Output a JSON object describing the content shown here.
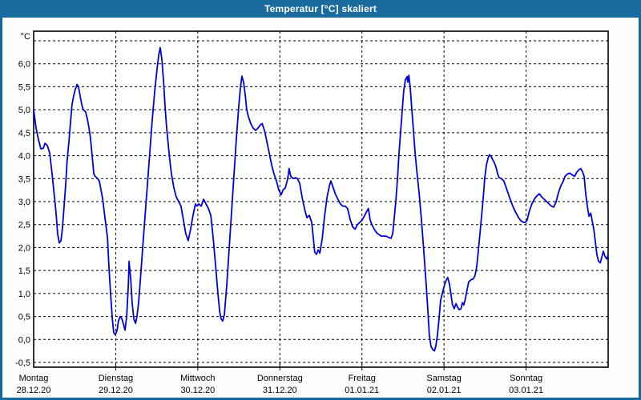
{
  "window": {
    "title": "Temperatur [°C] skaliert"
  },
  "colors": {
    "frame_blue": "#176a9d",
    "titlebar_blue": "#1b6b9f",
    "title_text": "#ffffff",
    "content_bg": "#fdfffd",
    "plot_bg": "#ffffff",
    "grid": "#000000",
    "axis_text": "#000000",
    "line_blue": "#0000d8"
  },
  "chart_data": {
    "type": "line",
    "title": "Temperatur [°C] skaliert",
    "y_unit": "°C",
    "ylim": [
      -0.5,
      6.5
    ],
    "ygrid_min": -0.5,
    "ygrid_max": 6.5,
    "ygrid_step": 0.5,
    "grid_style": "dashed",
    "legend": "none",
    "total_hours": 168,
    "hours_per_day": 24,
    "yticks": [
      {
        "v": 6.0,
        "label": "6,0"
      },
      {
        "v": 5.5,
        "label": "5,5"
      },
      {
        "v": 5.0,
        "label": "5,0"
      },
      {
        "v": 4.5,
        "label": "4,5"
      },
      {
        "v": 4.0,
        "label": "4,0"
      },
      {
        "v": 3.5,
        "label": "3,5"
      },
      {
        "v": 3.0,
        "label": "3,0"
      },
      {
        "v": 2.5,
        "label": "2,5"
      },
      {
        "v": 2.0,
        "label": "2,0"
      },
      {
        "v": 1.5,
        "label": "1,5"
      },
      {
        "v": 1.0,
        "label": "1,0"
      },
      {
        "v": 0.5,
        "label": "0,5"
      },
      {
        "v": 0.0,
        "label": "0,0"
      },
      {
        "v": -0.5,
        "label": "-0,5"
      }
    ],
    "x_days": [
      {
        "name": "Montag",
        "date": "28.12.20"
      },
      {
        "name": "Dienstag",
        "date": "29.12.20"
      },
      {
        "name": "Mittwoch",
        "date": "30.12.20"
      },
      {
        "name": "Donnerstag",
        "date": "31.12.20"
      },
      {
        "name": "Freitag",
        "date": "01.01.21"
      },
      {
        "name": "Samstag",
        "date": "02.01.21"
      },
      {
        "name": "Sonntag",
        "date": "03.01.21"
      }
    ],
    "series": [
      {
        "name": "Temperatur",
        "color": "#0000d8",
        "points": [
          [
            0,
            5.0
          ],
          [
            0.7,
            4.6
          ],
          [
            1.4,
            4.35
          ],
          [
            2.1,
            4.15
          ],
          [
            2.8,
            4.16
          ],
          [
            3.3,
            4.27
          ],
          [
            4.0,
            4.22
          ],
          [
            4.7,
            4.05
          ],
          [
            5.4,
            3.6
          ],
          [
            6.1,
            3.1
          ],
          [
            6.6,
            2.7
          ],
          [
            7.0,
            2.3
          ],
          [
            7.5,
            2.1
          ],
          [
            8.0,
            2.15
          ],
          [
            8.4,
            2.4
          ],
          [
            8.9,
            2.9
          ],
          [
            9.4,
            3.4
          ],
          [
            9.8,
            3.9
          ],
          [
            10.3,
            4.3
          ],
          [
            10.8,
            4.75
          ],
          [
            11.2,
            5.1
          ],
          [
            11.7,
            5.3
          ],
          [
            12.2,
            5.45
          ],
          [
            12.7,
            5.55
          ],
          [
            13.1,
            5.5
          ],
          [
            13.6,
            5.3
          ],
          [
            14.1,
            5.1
          ],
          [
            14.5,
            5.0
          ],
          [
            15.2,
            4.95
          ],
          [
            15.7,
            4.8
          ],
          [
            16.2,
            4.6
          ],
          [
            16.6,
            4.4
          ],
          [
            17.1,
            4.0
          ],
          [
            17.6,
            3.6
          ],
          [
            18.0,
            3.55
          ],
          [
            18.7,
            3.5
          ],
          [
            19.2,
            3.45
          ],
          [
            19.7,
            3.25
          ],
          [
            20.2,
            3.05
          ],
          [
            20.6,
            2.8
          ],
          [
            21.1,
            2.5
          ],
          [
            21.6,
            2.2
          ],
          [
            22.0,
            1.6
          ],
          [
            22.5,
            1.0
          ],
          [
            23.0,
            0.45
          ],
          [
            23.4,
            0.15
          ],
          [
            23.9,
            0.1
          ],
          [
            24.4,
            0.2
          ],
          [
            24.8,
            0.4
          ],
          [
            25.3,
            0.5
          ],
          [
            25.8,
            0.45
          ],
          [
            26.2,
            0.35
          ],
          [
            26.7,
            0.2
          ],
          [
            27.2,
            0.5
          ],
          [
            27.7,
            1.2
          ],
          [
            27.9,
            1.7
          ],
          [
            28.4,
            1.3
          ],
          [
            28.8,
            0.8
          ],
          [
            29.3,
            0.45
          ],
          [
            29.8,
            0.35
          ],
          [
            30.2,
            0.5
          ],
          [
            30.7,
            0.8
          ],
          [
            31.2,
            1.3
          ],
          [
            31.9,
            2.0
          ],
          [
            32.6,
            2.7
          ],
          [
            33.3,
            3.4
          ],
          [
            34.0,
            4.1
          ],
          [
            34.7,
            4.8
          ],
          [
            35.4,
            5.4
          ],
          [
            36.1,
            5.9
          ],
          [
            36.6,
            6.2
          ],
          [
            37.0,
            6.35
          ],
          [
            37.5,
            6.1
          ],
          [
            38.0,
            5.6
          ],
          [
            38.4,
            5.1
          ],
          [
            38.9,
            4.6
          ],
          [
            39.4,
            4.2
          ],
          [
            39.8,
            3.9
          ],
          [
            40.3,
            3.6
          ],
          [
            41.0,
            3.3
          ],
          [
            41.7,
            3.1
          ],
          [
            42.4,
            3.0
          ],
          [
            43.1,
            2.9
          ],
          [
            43.8,
            2.6
          ],
          [
            44.5,
            2.3
          ],
          [
            45.2,
            2.15
          ],
          [
            45.9,
            2.4
          ],
          [
            46.6,
            2.7
          ],
          [
            47.3,
            2.95
          ],
          [
            47.8,
            2.9
          ],
          [
            48.3,
            2.95
          ],
          [
            49.0,
            2.9
          ],
          [
            49.7,
            3.05
          ],
          [
            50.4,
            2.95
          ],
          [
            51.1,
            2.85
          ],
          [
            51.8,
            2.7
          ],
          [
            52.5,
            2.2
          ],
          [
            53.2,
            1.6
          ],
          [
            53.9,
            1.0
          ],
          [
            54.4,
            0.6
          ],
          [
            54.8,
            0.45
          ],
          [
            55.3,
            0.4
          ],
          [
            55.8,
            0.55
          ],
          [
            56.5,
            1.2
          ],
          [
            57.2,
            2.0
          ],
          [
            57.9,
            2.8
          ],
          [
            58.6,
            3.6
          ],
          [
            59.3,
            4.4
          ],
          [
            60.0,
            5.1
          ],
          [
            60.5,
            5.5
          ],
          [
            60.9,
            5.73
          ],
          [
            61.4,
            5.6
          ],
          [
            61.9,
            5.3
          ],
          [
            62.3,
            5.0
          ],
          [
            62.8,
            4.85
          ],
          [
            63.5,
            4.7
          ],
          [
            64.2,
            4.6
          ],
          [
            64.9,
            4.55
          ],
          [
            65.6,
            4.6
          ],
          [
            66.3,
            4.67
          ],
          [
            66.8,
            4.7
          ],
          [
            67.5,
            4.55
          ],
          [
            68.2,
            4.3
          ],
          [
            68.9,
            4.05
          ],
          [
            69.6,
            3.8
          ],
          [
            70.3,
            3.6
          ],
          [
            71.0,
            3.45
          ],
          [
            71.7,
            3.25
          ],
          [
            72.4,
            3.15
          ],
          [
            72.9,
            3.25
          ],
          [
            73.6,
            3.3
          ],
          [
            74.3,
            3.5
          ],
          [
            74.7,
            3.72
          ],
          [
            75.2,
            3.55
          ],
          [
            75.9,
            3.5
          ],
          [
            76.6,
            3.52
          ],
          [
            77.1,
            3.5
          ],
          [
            77.8,
            3.4
          ],
          [
            78.5,
            3.1
          ],
          [
            79.2,
            2.85
          ],
          [
            79.9,
            2.65
          ],
          [
            80.6,
            2.7
          ],
          [
            81.3,
            2.55
          ],
          [
            81.8,
            2.2
          ],
          [
            82.2,
            1.9
          ],
          [
            82.7,
            1.85
          ],
          [
            83.2,
            1.95
          ],
          [
            83.7,
            1.88
          ],
          [
            84.4,
            2.2
          ],
          [
            85.1,
            2.7
          ],
          [
            85.8,
            3.1
          ],
          [
            86.5,
            3.35
          ],
          [
            86.9,
            3.45
          ],
          [
            87.6,
            3.3
          ],
          [
            88.3,
            3.15
          ],
          [
            89.0,
            3.05
          ],
          [
            89.7,
            2.95
          ],
          [
            90.4,
            2.9
          ],
          [
            91.1,
            2.9
          ],
          [
            91.8,
            2.85
          ],
          [
            92.6,
            2.6
          ],
          [
            93.3,
            2.45
          ],
          [
            94.0,
            2.4
          ],
          [
            94.7,
            2.5
          ],
          [
            95.4,
            2.55
          ],
          [
            96.1,
            2.6
          ],
          [
            96.8,
            2.7
          ],
          [
            97.5,
            2.8
          ],
          [
            97.9,
            2.85
          ],
          [
            98.4,
            2.6
          ],
          [
            98.9,
            2.5
          ],
          [
            99.6,
            2.4
          ],
          [
            100.3,
            2.32
          ],
          [
            101.0,
            2.28
          ],
          [
            101.7,
            2.25
          ],
          [
            102.4,
            2.25
          ],
          [
            103.1,
            2.25
          ],
          [
            103.8,
            2.22
          ],
          [
            104.5,
            2.2
          ],
          [
            105.0,
            2.3
          ],
          [
            105.4,
            2.6
          ],
          [
            105.9,
            3.0
          ],
          [
            106.4,
            3.5
          ],
          [
            106.8,
            4.0
          ],
          [
            107.3,
            4.5
          ],
          [
            107.8,
            5.0
          ],
          [
            108.2,
            5.4
          ],
          [
            108.7,
            5.65
          ],
          [
            109.2,
            5.72
          ],
          [
            109.4,
            5.6
          ],
          [
            109.7,
            5.75
          ],
          [
            110.1,
            5.5
          ],
          [
            110.6,
            5.0
          ],
          [
            111.1,
            4.5
          ],
          [
            111.5,
            4.1
          ],
          [
            112.0,
            3.7
          ],
          [
            112.7,
            3.2
          ],
          [
            113.4,
            2.6
          ],
          [
            114.1,
            1.9
          ],
          [
            114.8,
            1.2
          ],
          [
            115.3,
            0.6
          ],
          [
            115.7,
            0.1
          ],
          [
            116.2,
            -0.15
          ],
          [
            116.7,
            -0.22
          ],
          [
            117.2,
            -0.25
          ],
          [
            117.6,
            -0.15
          ],
          [
            118.1,
            0.1
          ],
          [
            118.6,
            0.5
          ],
          [
            119.0,
            0.85
          ],
          [
            119.5,
            1.0
          ],
          [
            120.2,
            1.2
          ],
          [
            120.7,
            1.3
          ],
          [
            121.1,
            1.35
          ],
          [
            121.6,
            1.2
          ],
          [
            122.1,
            0.95
          ],
          [
            122.5,
            0.75
          ],
          [
            123.0,
            0.67
          ],
          [
            123.5,
            0.78
          ],
          [
            124.0,
            0.7
          ],
          [
            124.4,
            0.65
          ],
          [
            124.9,
            0.66
          ],
          [
            125.4,
            0.8
          ],
          [
            125.8,
            0.75
          ],
          [
            126.3,
            0.9
          ],
          [
            126.8,
            1.1
          ],
          [
            127.2,
            1.25
          ],
          [
            127.9,
            1.3
          ],
          [
            128.6,
            1.32
          ],
          [
            129.1,
            1.4
          ],
          [
            129.6,
            1.6
          ],
          [
            130.0,
            1.9
          ],
          [
            130.5,
            2.3
          ],
          [
            131.0,
            2.7
          ],
          [
            131.5,
            3.1
          ],
          [
            131.9,
            3.5
          ],
          [
            132.4,
            3.8
          ],
          [
            132.9,
            3.95
          ],
          [
            133.3,
            4.02
          ],
          [
            133.8,
            3.98
          ],
          [
            134.3,
            3.9
          ],
          [
            134.7,
            3.85
          ],
          [
            135.2,
            3.75
          ],
          [
            135.7,
            3.6
          ],
          [
            136.1,
            3.52
          ],
          [
            136.8,
            3.5
          ],
          [
            137.5,
            3.45
          ],
          [
            138.2,
            3.3
          ],
          [
            138.9,
            3.15
          ],
          [
            139.6,
            3.0
          ],
          [
            140.4,
            2.85
          ],
          [
            141.1,
            2.75
          ],
          [
            141.8,
            2.65
          ],
          [
            142.5,
            2.58
          ],
          [
            143.2,
            2.55
          ],
          [
            143.9,
            2.55
          ],
          [
            144.3,
            2.6
          ],
          [
            145.0,
            2.8
          ],
          [
            145.7,
            2.95
          ],
          [
            146.4,
            3.05
          ],
          [
            147.1,
            3.12
          ],
          [
            147.9,
            3.17
          ],
          [
            148.6,
            3.1
          ],
          [
            149.3,
            3.05
          ],
          [
            150.0,
            3.0
          ],
          [
            150.7,
            2.95
          ],
          [
            151.4,
            2.9
          ],
          [
            152.1,
            2.88
          ],
          [
            152.8,
            3.0
          ],
          [
            153.5,
            3.2
          ],
          [
            154.2,
            3.35
          ],
          [
            154.9,
            3.45
          ],
          [
            155.4,
            3.55
          ],
          [
            156.1,
            3.6
          ],
          [
            156.8,
            3.62
          ],
          [
            157.5,
            3.58
          ],
          [
            158.2,
            3.55
          ],
          [
            158.9,
            3.65
          ],
          [
            159.6,
            3.7
          ],
          [
            160.0,
            3.72
          ],
          [
            160.5,
            3.65
          ],
          [
            161.0,
            3.55
          ],
          [
            161.4,
            3.2
          ],
          [
            161.9,
            2.9
          ],
          [
            162.4,
            2.68
          ],
          [
            162.9,
            2.75
          ],
          [
            163.3,
            2.6
          ],
          [
            163.8,
            2.4
          ],
          [
            164.3,
            2.1
          ],
          [
            164.7,
            1.85
          ],
          [
            165.2,
            1.7
          ],
          [
            165.7,
            1.67
          ],
          [
            166.2,
            1.8
          ],
          [
            166.6,
            1.92
          ],
          [
            167.1,
            1.8
          ],
          [
            167.6,
            1.75
          ],
          [
            168.0,
            1.85
          ]
        ]
      }
    ]
  }
}
